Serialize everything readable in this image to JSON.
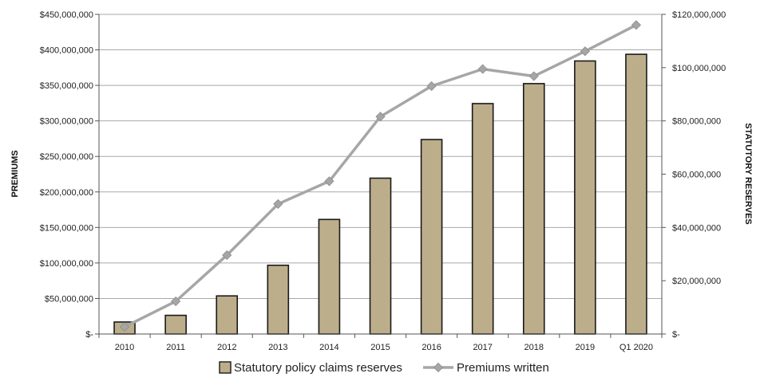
{
  "chart_data": {
    "type": "bar",
    "categories": [
      "2010",
      "2011",
      "2012",
      "2013",
      "2014",
      "2015",
      "2016",
      "2017",
      "2018",
      "2019",
      "Q1 2020"
    ],
    "series": [
      {
        "name": "Statutory policy claims reserves",
        "type": "bar",
        "axis": "right",
        "color": "#bdae8b",
        "values": [
          4500000,
          7000000,
          14300000,
          25800000,
          43000000,
          58500000,
          73000000,
          86500000,
          94000000,
          102500000,
          105000000
        ]
      },
      {
        "name": "Premiums written",
        "type": "line",
        "axis": "left",
        "color": "#a6a6a6",
        "values": [
          10000000,
          46000000,
          111000000,
          183000000,
          215000000,
          306000000,
          349000000,
          373000000,
          363000000,
          398000000,
          435000000
        ]
      }
    ],
    "ylabel_left": "PREMIUMS",
    "ylabel_right": "STATUTORY RESERVES",
    "ylim_left": [
      0,
      450000000
    ],
    "ylim_right": [
      0,
      120000000
    ],
    "yticks_left": [
      {
        "value": 0,
        "label": "$-"
      },
      {
        "value": 50000000,
        "label": "$50,000,000"
      },
      {
        "value": 100000000,
        "label": "$100,000,000"
      },
      {
        "value": 150000000,
        "label": "$150,000,000"
      },
      {
        "value": 200000000,
        "label": "$200,000,000"
      },
      {
        "value": 250000000,
        "label": "$250,000,000"
      },
      {
        "value": 300000000,
        "label": "$300,000,000"
      },
      {
        "value": 350000000,
        "label": "$350,000,000"
      },
      {
        "value": 400000000,
        "label": "$400,000,000"
      },
      {
        "value": 450000000,
        "label": "$450,000,000"
      }
    ],
    "yticks_right": [
      {
        "value": 0,
        "label": "$-"
      },
      {
        "value": 20000000,
        "label": "$20,000,000"
      },
      {
        "value": 40000000,
        "label": "$40,000,000"
      },
      {
        "value": 60000000,
        "label": "$60,000,000"
      },
      {
        "value": 80000000,
        "label": "$80,000,000"
      },
      {
        "value": 100000000,
        "label": "$100,000,000"
      },
      {
        "value": 120000000,
        "label": "$120,000,000"
      }
    ],
    "grid": true,
    "legend_position": "bottom-center"
  }
}
